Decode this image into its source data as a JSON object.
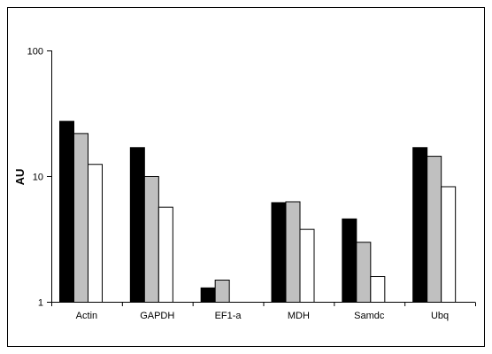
{
  "chart_data": {
    "type": "bar",
    "title": "",
    "xlabel": "",
    "ylabel": "AU",
    "yscale": "log",
    "ylim": [
      1,
      100
    ],
    "yticks": [
      {
        "value": 1,
        "label": "1"
      },
      {
        "value": 10,
        "label": "10"
      },
      {
        "value": 100,
        "label": "100"
      }
    ],
    "categories": [
      "Actin",
      "GAPDH",
      "EF1-a",
      "MDH",
      "Samdc",
      "Ubq"
    ],
    "series": [
      {
        "color": "#000000",
        "values": [
          27.5,
          17,
          1.3,
          6.2,
          4.6,
          17
        ]
      },
      {
        "color": "#c0c0c0",
        "values": [
          22,
          10,
          1.5,
          6.3,
          3.0,
          14.5
        ]
      },
      {
        "color": "#ffffff",
        "values": [
          12.5,
          5.7,
          null,
          3.8,
          1.6,
          8.3
        ]
      }
    ],
    "grid": false,
    "legend": "none"
  }
}
